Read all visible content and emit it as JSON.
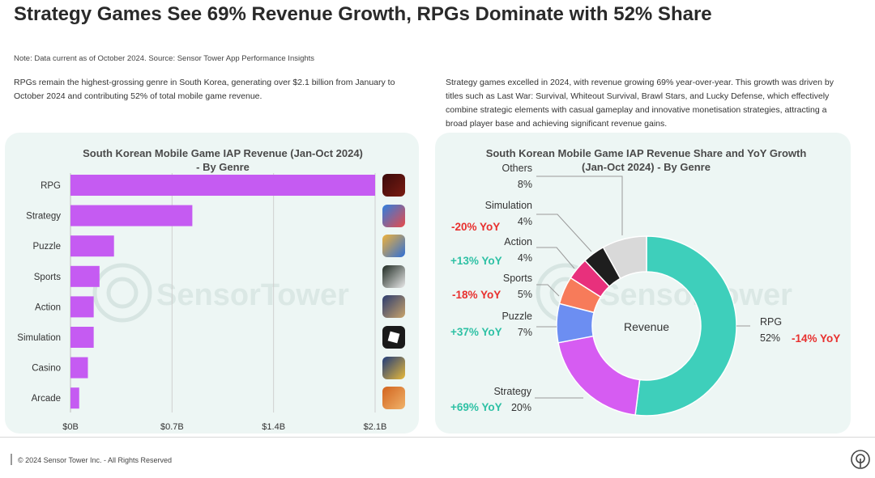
{
  "header": {
    "title": "Strategy Games See 69% Revenue Growth, RPGs Dominate with 52% Share",
    "note": "Note: Data current as of October 2024. Source: Sensor Tower App Performance Insights"
  },
  "text": {
    "left_paragraph": "RPGs remain the highest-grossing genre in South Korea, generating over $2.1 billion from January to October 2024 and contributing 52% of total mobile game revenue.",
    "right_paragraph": "Strategy games excelled in 2024, with revenue growing 69% year-over-year. This growth was driven by titles such as Last War: Survival, Whiteout Survival, Brawl Stars, and Lucky Defense, which effectively combine strategic elements with casual gameplay and innovative monetisation strategies, attracting a broad player base and achieving significant revenue gains."
  },
  "watermark": "SensorTower",
  "footer": {
    "copyright": "© 2024 Sensor Tower Inc. - All Rights Reserved"
  },
  "colors": {
    "bar": "#c55bf2",
    "teal": "#3ecfbb",
    "positive": "#2fc1a5",
    "negative": "#e8302e"
  },
  "chart_data": [
    {
      "type": "bar",
      "orientation": "horizontal",
      "title_line1": "South Korean Mobile Game IAP Revenue (Jan-Oct 2024)",
      "title_line2": "- By Genre",
      "categories": [
        "RPG",
        "Strategy",
        "Puzzle",
        "Sports",
        "Action",
        "Simulation",
        "Casino",
        "Arcade"
      ],
      "values": [
        2.1,
        0.84,
        0.3,
        0.2,
        0.16,
        0.16,
        0.12,
        0.06
      ],
      "unit": "$B",
      "xlim": [
        0,
        2.1
      ],
      "xticks": [
        0,
        0.7,
        1.4,
        2.1
      ],
      "xtick_labels": [
        "$0B",
        "$0.7B",
        "$1.4B",
        "$2.1B"
      ],
      "icons": [
        "mir-m-icon",
        "last-war-icon",
        "royal-match-icon",
        "fc-mobile-icon",
        "action-game-icon",
        "roblox-icon",
        "poker-icon",
        "cookie-run-icon"
      ]
    },
    {
      "type": "pie",
      "variant": "donut",
      "title_line1": "South Korean Mobile Game IAP Revenue Share and YoY Growth",
      "title_line2": "(Jan-Oct 2024) - By Genre",
      "center_label": "Revenue",
      "slices": [
        {
          "name": "RPG",
          "value": 52,
          "label": "52%",
          "yoy": "-14% YoY",
          "color": "#3ecfbb"
        },
        {
          "name": "Strategy",
          "value": 20,
          "label": "20%",
          "yoy": "+69% YoY",
          "color": "#d65cf2"
        },
        {
          "name": "Puzzle",
          "value": 7,
          "label": "7%",
          "yoy": "+37% YoY",
          "color": "#6c8ef2"
        },
        {
          "name": "Sports",
          "value": 5,
          "label": "5%",
          "yoy": "-18% YoY",
          "color": "#f77b5a"
        },
        {
          "name": "Action",
          "value": 4,
          "label": "4%",
          "yoy": "+13% YoY",
          "color": "#e8307c"
        },
        {
          "name": "Simulation",
          "value": 4,
          "label": "4%",
          "yoy": "-20% YoY",
          "color": "#1e1e1e"
        },
        {
          "name": "Others",
          "value": 8,
          "label": "8%",
          "yoy": "",
          "color": "#d9d9d9"
        }
      ]
    }
  ]
}
